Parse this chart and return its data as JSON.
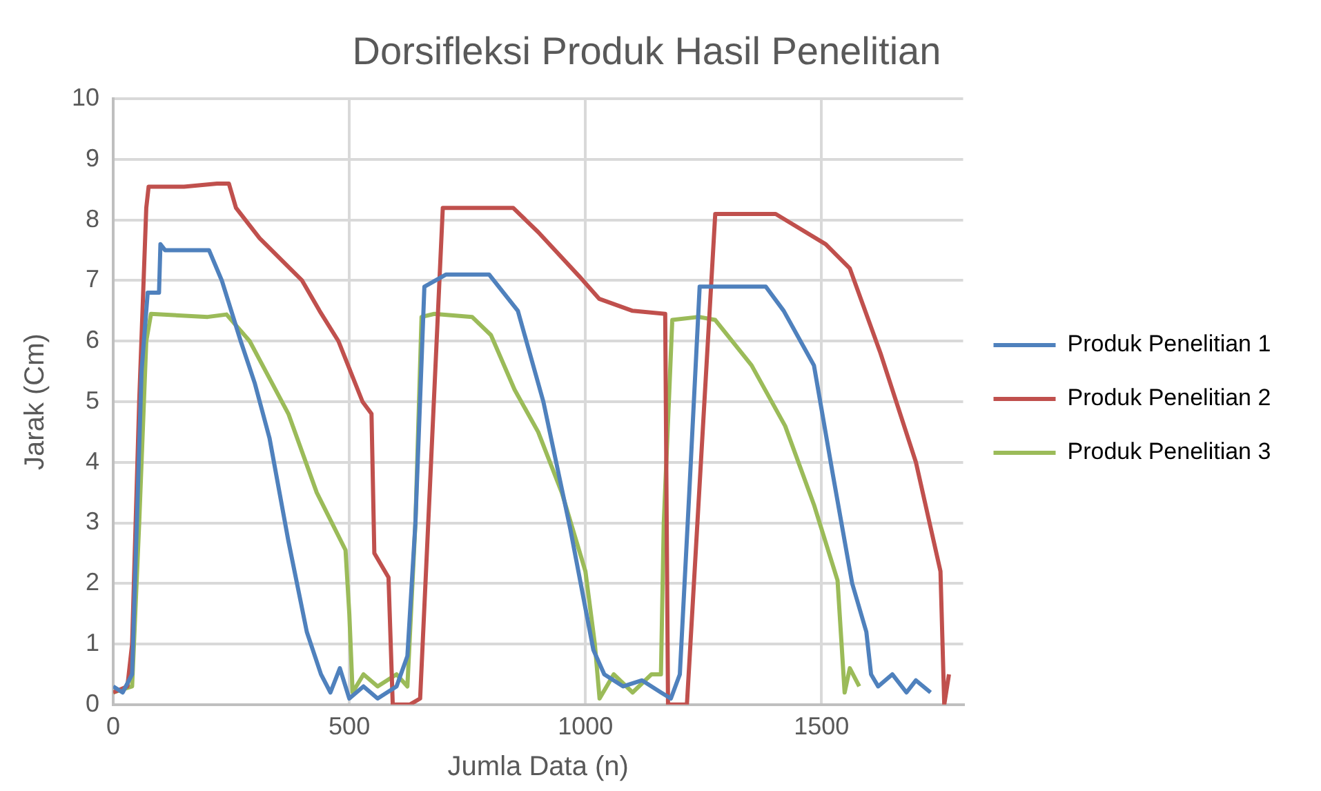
{
  "chart_data": {
    "type": "line",
    "title": "Dorsifleksi Produk Hasil Penelitian",
    "xlabel": "Jumla Data (n)",
    "ylabel": "Jarak (Cm)",
    "xlim": [
      0,
      1800
    ],
    "xticks": [
      0,
      500,
      1000,
      1500
    ],
    "ylim": [
      0,
      10
    ],
    "yticks": [
      0,
      1,
      2,
      3,
      4,
      5,
      6,
      7,
      8,
      9,
      10
    ],
    "grid": true,
    "legend": "right",
    "marker": "none",
    "line_style": "solid",
    "series": [
      {
        "name": "Produk Penelitian 1",
        "color": "#4f81bd",
        "x": [
          0,
          20,
          40,
          60,
          73,
          97,
          100,
          110,
          203,
          230,
          270,
          300,
          331,
          371,
          410,
          440,
          460,
          480,
          500,
          530,
          560,
          600,
          623,
          640,
          659,
          705,
          796,
          857,
          911,
          968,
          1017,
          1040,
          1080,
          1120,
          1160,
          1181,
          1200,
          1220,
          1242,
          1300,
          1382,
          1420,
          1484,
          1524,
          1565,
          1595,
          1605,
          1620,
          1650,
          1680,
          1700,
          1731
        ],
        "values": [
          0.3,
          0.2,
          0.5,
          5.5,
          6.8,
          6.8,
          7.6,
          7.5,
          7.5,
          7.0,
          6.0,
          5.3,
          4.4,
          2.7,
          1.2,
          0.5,
          0.2,
          0.6,
          0.1,
          0.3,
          0.1,
          0.3,
          0.8,
          3.0,
          6.9,
          7.1,
          7.1,
          6.5,
          5.0,
          2.9,
          0.9,
          0.5,
          0.3,
          0.4,
          0.2,
          0.1,
          0.5,
          3.5,
          6.9,
          6.9,
          6.9,
          6.5,
          5.6,
          3.8,
          2.0,
          1.2,
          0.5,
          0.3,
          0.5,
          0.2,
          0.4,
          0.2
        ]
      },
      {
        "name": "Produk Penelitian 2",
        "color": "#c0504d",
        "x": [
          0,
          30,
          40,
          55,
          70,
          75,
          150,
          220,
          245,
          260,
          310,
          400,
          437,
          477,
          528,
          547,
          553,
          583,
          592,
          628,
          650,
          698,
          847,
          900,
          987,
          1029,
          1100,
          1169,
          1175,
          1215,
          1275,
          1403,
          1509,
          1560,
          1625,
          1700,
          1752,
          1760,
          1770
        ],
        "values": [
          0.2,
          0.3,
          1.0,
          5.0,
          8.2,
          8.55,
          8.55,
          8.6,
          8.6,
          8.2,
          7.7,
          7.0,
          6.5,
          6.0,
          5.0,
          4.8,
          2.5,
          2.1,
          0.0,
          0.0,
          0.1,
          8.2,
          8.2,
          7.8,
          7.07,
          6.7,
          6.5,
          6.45,
          0.0,
          0.0,
          8.1,
          8.1,
          7.6,
          7.2,
          5.8,
          4.0,
          2.2,
          0.0,
          0.5
        ]
      },
      {
        "name": "Produk Penelitian 3",
        "color": "#9bbb59",
        "x": [
          0,
          40,
          55,
          70,
          80,
          200,
          240,
          289,
          371,
          431,
          492,
          500,
          507,
          530,
          560,
          600,
          623,
          640,
          653,
          680,
          760,
          800,
          850,
          900,
          950,
          1000,
          1020,
          1030,
          1060,
          1100,
          1140,
          1160,
          1166,
          1184,
          1240,
          1275,
          1352,
          1423,
          1484,
          1534,
          1549,
          1560,
          1580
        ],
        "values": [
          0.2,
          0.3,
          3.0,
          6.0,
          6.45,
          6.4,
          6.44,
          6.0,
          4.8,
          3.5,
          2.55,
          1.5,
          0.2,
          0.5,
          0.3,
          0.5,
          0.3,
          3.0,
          6.4,
          6.45,
          6.4,
          6.1,
          5.2,
          4.5,
          3.5,
          2.2,
          1.0,
          0.1,
          0.5,
          0.2,
          0.5,
          0.5,
          3.0,
          6.35,
          6.4,
          6.35,
          5.6,
          4.6,
          3.3,
          2.05,
          0.2,
          0.6,
          0.3
        ]
      }
    ]
  }
}
